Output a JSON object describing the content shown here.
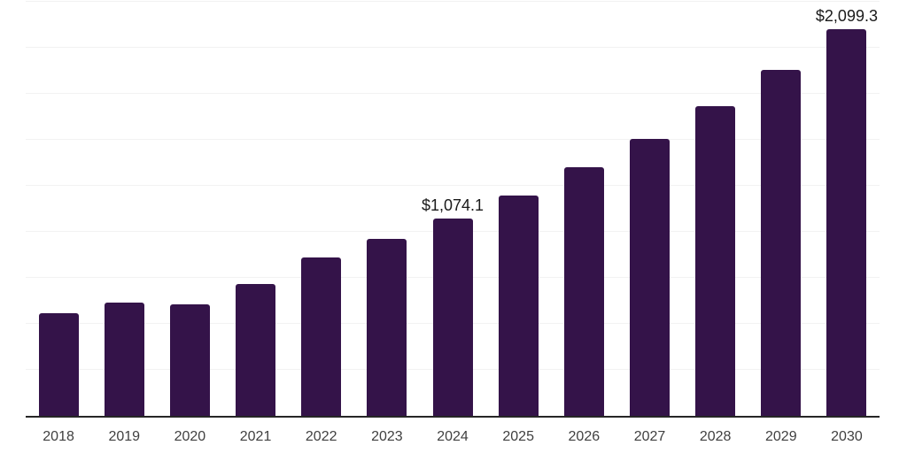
{
  "chart_data": {
    "type": "bar",
    "title": "",
    "xlabel": "",
    "ylabel": "",
    "categories": [
      "2018",
      "2019",
      "2020",
      "2021",
      "2022",
      "2023",
      "2024",
      "2025",
      "2026",
      "2027",
      "2028",
      "2029",
      "2030"
    ],
    "values": [
      560,
      616,
      608,
      716,
      860,
      962,
      1074.1,
      1197,
      1351,
      1505,
      1683,
      1880,
      2099.3
    ],
    "labels": [
      "",
      "",
      "",
      "",
      "",
      "",
      "$1,074.1",
      "",
      "",
      "",
      "",
      "",
      "$2,099.3"
    ],
    "ylim": [
      0,
      2250
    ],
    "grid_step": 250,
    "grid": "horizontal-only",
    "legend_position": "none",
    "colors": {
      "bar": "#341349",
      "gridline": "#f2f2f2",
      "axis_line": "#262626",
      "tick_label": "#404040",
      "data_label": "#1a1a1a",
      "background": "#ffffff"
    }
  }
}
